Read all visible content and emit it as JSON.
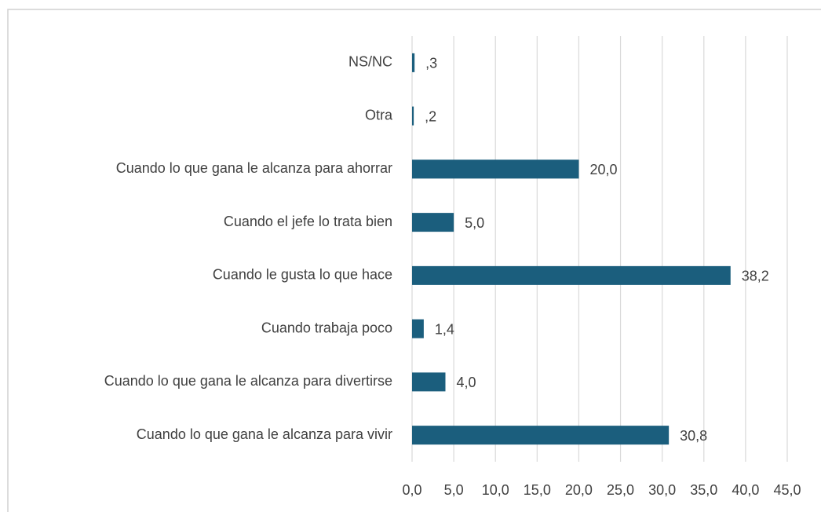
{
  "chart_data": {
    "type": "bar",
    "orientation": "horizontal",
    "categories": [
      "NS/NC",
      "Otra",
      "Cuando lo que gana le alcanza para ahorrar",
      "Cuando el jefe lo trata bien",
      "Cuando le gusta lo que hace",
      "Cuando trabaja poco",
      "Cuando lo que gana le alcanza para divertirse",
      "Cuando lo que gana le alcanza para vivir"
    ],
    "values": [
      0.3,
      0.2,
      20.0,
      5.0,
      38.2,
      1.4,
      4.0,
      30.8
    ],
    "value_labels": [
      ",3",
      ",2",
      "20,0",
      "5,0",
      "38,2",
      "1,4",
      "4,0",
      "30,8"
    ],
    "color": "#1b5e7d",
    "xlim": [
      0,
      45
    ],
    "xticks": [
      {
        "value": 0,
        "label": "0,0"
      },
      {
        "value": 5,
        "label": "5,0"
      },
      {
        "value": 10,
        "label": "10,0"
      },
      {
        "value": 15,
        "label": "15,0"
      },
      {
        "value": 20,
        "label": "20,0"
      },
      {
        "value": 25,
        "label": "25,0"
      },
      {
        "value": 30,
        "label": "30,0"
      },
      {
        "value": 35,
        "label": "35,0"
      },
      {
        "value": 40,
        "label": "40,0"
      },
      {
        "value": 45,
        "label": "45,0"
      }
    ],
    "grid": true
  }
}
